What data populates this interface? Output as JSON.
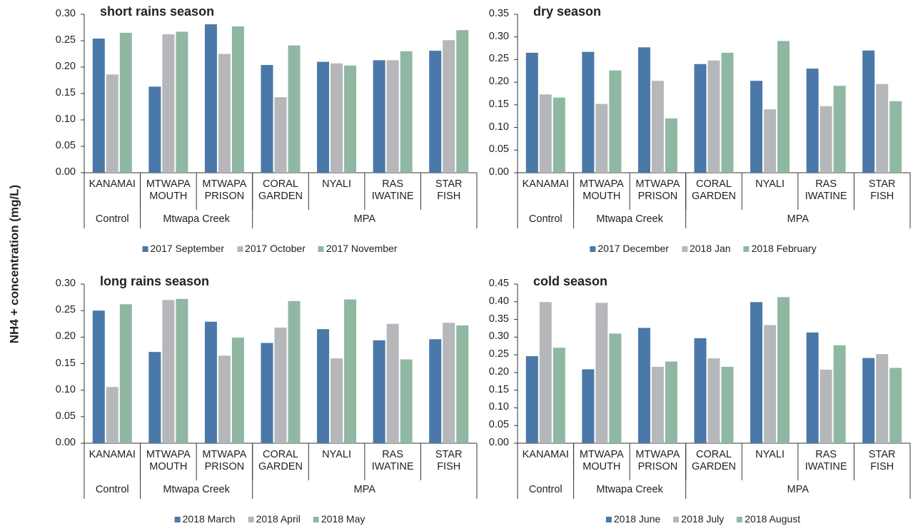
{
  "ylabel": "NH4 + concentration (mg/L)",
  "chart_data": [
    {
      "type": "bar",
      "title": "short rains season",
      "categories": [
        "KANAMAI",
        "MTWAPA MOUTH",
        "MTWAPA PRISON",
        "CORAL GARDEN",
        "NYALI",
        "RAS IWATINE",
        "STAR FISH"
      ],
      "groups": [
        {
          "name": "Control",
          "span": 1
        },
        {
          "name": "Mtwapa Creek",
          "span": 2
        },
        {
          "name": "MPA",
          "span": 4
        }
      ],
      "series": [
        {
          "name": "2017 September",
          "color": "#4a78a8",
          "values": [
            0.254,
            0.163,
            0.281,
            0.204,
            0.21,
            0.213,
            0.231
          ]
        },
        {
          "name": "2017 October",
          "color": "#b5b7ba",
          "values": [
            0.186,
            0.262,
            0.225,
            0.143,
            0.207,
            0.213,
            0.251
          ]
        },
        {
          "name": "2017 November",
          "color": "#8fb8a2",
          "values": [
            0.265,
            0.267,
            0.277,
            0.241,
            0.203,
            0.23,
            0.27
          ]
        }
      ],
      "ylim": [
        0,
        0.3
      ],
      "yticks": [
        {
          "value": 0,
          "label": "0.00"
        },
        {
          "value": 0.05,
          "label": "0.05"
        },
        {
          "value": 0.1,
          "label": "0.10"
        },
        {
          "value": 0.15,
          "label": "0.15"
        },
        {
          "value": 0.2,
          "label": "0.20"
        },
        {
          "value": 0.25,
          "label": "0.25"
        },
        {
          "value": 0.3,
          "label": "0.30"
        }
      ],
      "legend": "bottom"
    },
    {
      "type": "bar",
      "title": "dry season",
      "categories": [
        "KANAMAI",
        "MTWAPA MOUTH",
        "MTWAPA PRISON",
        "CORAL GARDEN",
        "NYALI",
        "RAS IWATINE",
        "STAR FISH"
      ],
      "groups": [
        {
          "name": "Control",
          "span": 1
        },
        {
          "name": "Mtwapa Creek",
          "span": 2
        },
        {
          "name": "MPA",
          "span": 4
        }
      ],
      "series": [
        {
          "name": "2017 December",
          "color": "#4a78a8",
          "values": [
            0.265,
            0.267,
            0.277,
            0.24,
            0.203,
            0.23,
            0.27
          ]
        },
        {
          "name": "2018 Jan",
          "color": "#b5b7ba",
          "values": [
            0.173,
            0.152,
            0.203,
            0.248,
            0.14,
            0.147,
            0.196
          ]
        },
        {
          "name": "2018 February",
          "color": "#8fb8a2",
          "values": [
            0.166,
            0.226,
            0.12,
            0.265,
            0.291,
            0.192,
            0.158
          ]
        }
      ],
      "ylim": [
        0,
        0.35
      ],
      "yticks": [
        {
          "value": 0,
          "label": "0.00"
        },
        {
          "value": 0.05,
          "label": "0.05"
        },
        {
          "value": 0.1,
          "label": "0.10"
        },
        {
          "value": 0.15,
          "label": "0.15"
        },
        {
          "value": 0.2,
          "label": "0.20"
        },
        {
          "value": 0.25,
          "label": "0.25"
        },
        {
          "value": 0.3,
          "label": "0.30"
        },
        {
          "value": 0.35,
          "label": "0.35"
        }
      ],
      "legend": "bottom"
    },
    {
      "type": "bar",
      "title": "long rains season",
      "categories": [
        "KANAMAI",
        "MTWAPA MOUTH",
        "MTWAPA PRISON",
        "CORAL GARDEN",
        "NYALI",
        "RAS IWATINE",
        "STAR FISH"
      ],
      "groups": [
        {
          "name": "Control",
          "span": 1
        },
        {
          "name": "Mtwapa Creek",
          "span": 2
        },
        {
          "name": "MPA",
          "span": 4
        }
      ],
      "series": [
        {
          "name": "2018 March",
          "color": "#4a78a8",
          "values": [
            0.25,
            0.172,
            0.229,
            0.189,
            0.215,
            0.194,
            0.196
          ]
        },
        {
          "name": "2018 April",
          "color": "#b5b7ba",
          "values": [
            0.106,
            0.27,
            0.165,
            0.218,
            0.16,
            0.225,
            0.227
          ]
        },
        {
          "name": "2018 May",
          "color": "#8fb8a2",
          "values": [
            0.262,
            0.272,
            0.199,
            0.268,
            0.271,
            0.158,
            0.222
          ]
        }
      ],
      "ylim": [
        0,
        0.3
      ],
      "yticks": [
        {
          "value": 0,
          "label": "0.00"
        },
        {
          "value": 0.05,
          "label": "0.05"
        },
        {
          "value": 0.1,
          "label": "0.10"
        },
        {
          "value": 0.15,
          "label": "0.15"
        },
        {
          "value": 0.2,
          "label": "0.20"
        },
        {
          "value": 0.25,
          "label": "0.25"
        },
        {
          "value": 0.3,
          "label": "0.30"
        }
      ],
      "legend": "bottom"
    },
    {
      "type": "bar",
      "title": "cold season",
      "categories": [
        "KANAMAI",
        "MTWAPA MOUTH",
        "MTWAPA PRISON",
        "CORAL GARDEN",
        "NYALI",
        "RAS IWATINE",
        "STAR FISH"
      ],
      "groups": [
        {
          "name": "Control",
          "span": 1
        },
        {
          "name": "Mtwapa Creek",
          "span": 2
        },
        {
          "name": "MPA",
          "span": 4
        }
      ],
      "series": [
        {
          "name": "2018 June",
          "color": "#4a78a8",
          "values": [
            0.246,
            0.209,
            0.326,
            0.297,
            0.399,
            0.313,
            0.241
          ]
        },
        {
          "name": "2018 July",
          "color": "#b5b7ba",
          "values": [
            0.399,
            0.397,
            0.216,
            0.24,
            0.334,
            0.208,
            0.252
          ]
        },
        {
          "name": "2018 August",
          "color": "#8fb8a2",
          "values": [
            0.27,
            0.31,
            0.231,
            0.216,
            0.413,
            0.277,
            0.213
          ]
        }
      ],
      "ylim": [
        0,
        0.45
      ],
      "yticks": [
        {
          "value": 0,
          "label": "0.00"
        },
        {
          "value": 0.05,
          "label": "0.05"
        },
        {
          "value": 0.1,
          "label": "0.10"
        },
        {
          "value": 0.15,
          "label": "0.15"
        },
        {
          "value": 0.2,
          "label": "0.20"
        },
        {
          "value": 0.25,
          "label": "0.25"
        },
        {
          "value": 0.3,
          "label": "0.30"
        },
        {
          "value": 0.35,
          "label": "0.35"
        },
        {
          "value": 0.4,
          "label": "0.40"
        },
        {
          "value": 0.45,
          "label": "0.45"
        }
      ],
      "legend": "bottom"
    }
  ]
}
